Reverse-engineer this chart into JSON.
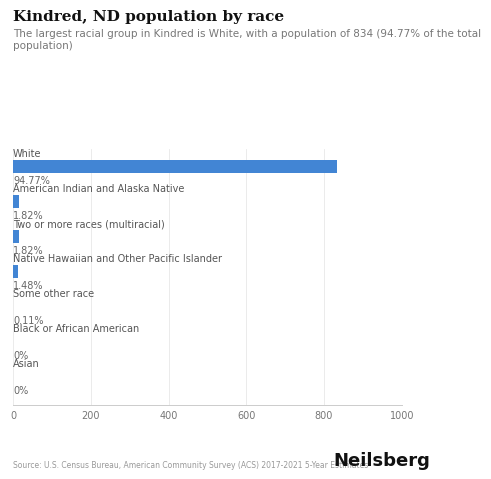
{
  "title": "Kindred, ND population by race",
  "subtitle": "The largest racial group in Kindred is White, with a population of 834 (94.77% of the total\npopulation)",
  "categories": [
    "White",
    "American Indian and Alaska Native",
    "Two or more races (multiracial)",
    "Native Hawaiian and Other Pacific Islander",
    "Some other race",
    "Black or African American",
    "Asian"
  ],
  "values": [
    834,
    16,
    16,
    13,
    1,
    0,
    0
  ],
  "percentages": [
    "94.77%",
    "1.82%",
    "1.82%",
    "1.48%",
    "0.11%",
    "0%",
    "0%"
  ],
  "bar_color_blue": "#4285d4",
  "bar_color_gray": "#bbbbbb",
  "xlim": [
    0,
    1000
  ],
  "xticks": [
    0,
    200,
    400,
    600,
    800,
    1000
  ],
  "background_color": "#ffffff",
  "title_fontsize": 11,
  "subtitle_fontsize": 7.5,
  "label_fontsize": 7,
  "pct_fontsize": 7,
  "tick_fontsize": 7,
  "source_text": "Source: U.S. Census Bureau, American Community Survey (ACS) 2017-2021 5-Year Estimates",
  "brand_text": "Neilsberg",
  "brand_fontsize": 13
}
